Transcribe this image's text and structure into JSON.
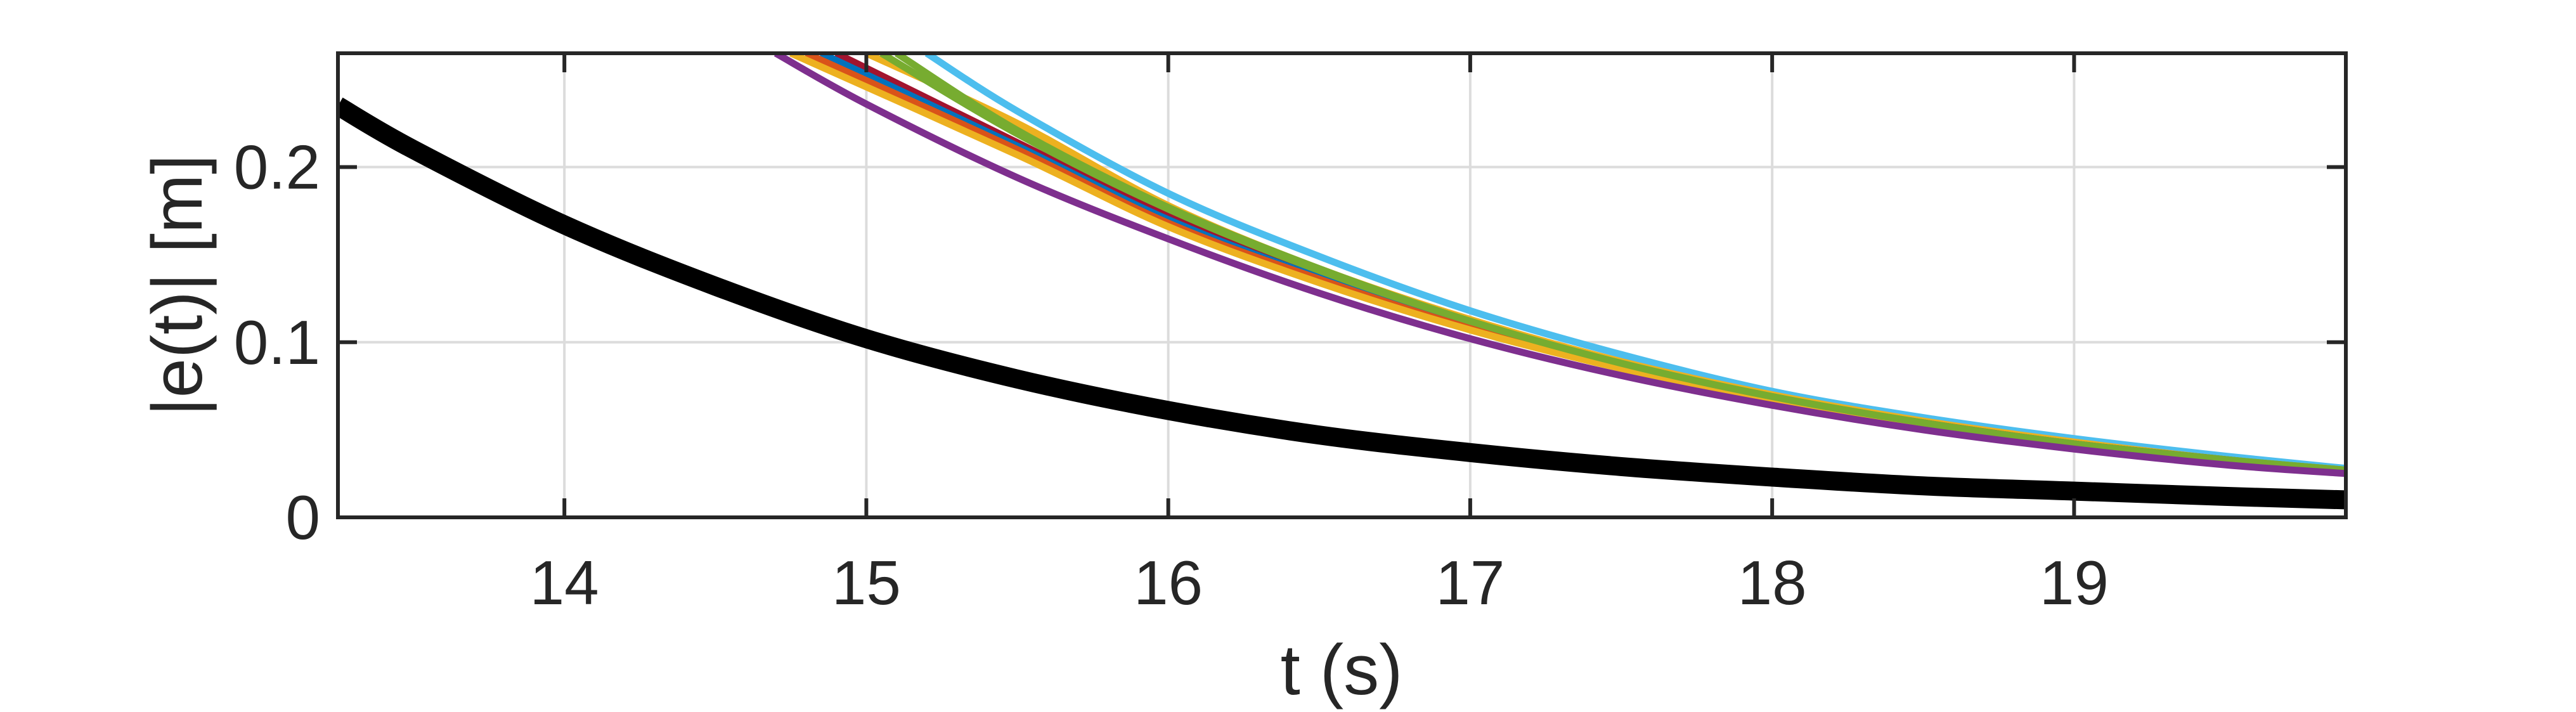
{
  "chart_data": {
    "type": "line",
    "title": "",
    "xlabel": "t (s)",
    "ylabel": "|e(t)| [m]",
    "xlim": [
      13.25,
      19.9
    ],
    "ylim": [
      0,
      0.265
    ],
    "xticks": [
      14,
      15,
      16,
      17,
      18,
      19
    ],
    "yticks": [
      0,
      0.1,
      0.2
    ],
    "xtick_labels": [
      "14",
      "15",
      "16",
      "17",
      "18",
      "19"
    ],
    "ytick_labels": [
      "0",
      "0.1",
      "0.2"
    ],
    "grid": true,
    "legend": "none",
    "series": [
      {
        "color": "#000000",
        "role": "reference",
        "x": [
          13.25,
          13.5,
          14.0,
          14.5,
          15.0,
          15.5,
          16.0,
          16.5,
          17.0,
          17.5,
          18.0,
          18.5,
          19.0,
          19.5,
          19.9
        ],
        "y": [
          0.235,
          0.21,
          0.167,
          0.132,
          0.102,
          0.079,
          0.061,
          0.047,
          0.037,
          0.029,
          0.023,
          0.018,
          0.015,
          0.012,
          0.01
        ]
      },
      {
        "color": "#4DBEEE",
        "x": [
          15.2,
          15.5,
          16.0,
          16.5,
          17.0,
          17.5,
          18.0,
          18.5,
          19.0,
          19.5,
          19.9
        ],
        "y": [
          0.265,
          0.232,
          0.185,
          0.149,
          0.118,
          0.093,
          0.072,
          0.057,
          0.045,
          0.035,
          0.028
        ]
      },
      {
        "color": "#EDB120",
        "x": [
          15.0,
          15.5,
          16.0,
          16.5,
          17.0,
          17.5,
          18.0,
          18.5,
          19.0,
          19.5,
          19.9
        ],
        "y": [
          0.265,
          0.225,
          0.178,
          0.142,
          0.113,
          0.089,
          0.07,
          0.055,
          0.043,
          0.033,
          0.027
        ]
      },
      {
        "color": "#A2142F",
        "x": [
          14.9,
          15.5,
          16.0,
          16.5,
          17.0,
          17.5,
          18.0,
          18.5,
          19.0,
          19.5,
          19.9
        ],
        "y": [
          0.265,
          0.214,
          0.172,
          0.138,
          0.11,
          0.087,
          0.068,
          0.054,
          0.042,
          0.033,
          0.026
        ]
      },
      {
        "color": "#0072BD",
        "x": [
          14.85,
          15.5,
          16.0,
          16.5,
          17.0,
          17.5,
          18.0,
          18.5,
          19.0,
          19.5,
          19.9
        ],
        "y": [
          0.265,
          0.212,
          0.17,
          0.137,
          0.109,
          0.086,
          0.068,
          0.053,
          0.041,
          0.032,
          0.026
        ]
      },
      {
        "color": "#D95319",
        "x": [
          14.8,
          15.5,
          16.0,
          16.5,
          17.0,
          17.5,
          18.0,
          18.5,
          19.0,
          19.5,
          19.9
        ],
        "y": [
          0.265,
          0.21,
          0.168,
          0.136,
          0.108,
          0.086,
          0.067,
          0.053,
          0.041,
          0.032,
          0.026
        ]
      },
      {
        "color": "#EDB120",
        "x": [
          14.75,
          15.5,
          16.0,
          16.5,
          17.0,
          17.5,
          18.0,
          18.5,
          19.0,
          19.5,
          19.9
        ],
        "y": [
          0.265,
          0.207,
          0.166,
          0.134,
          0.107,
          0.085,
          0.067,
          0.053,
          0.041,
          0.032,
          0.026
        ]
      },
      {
        "color": "#77AC30",
        "x": [
          15.05,
          15.5,
          16.0,
          16.5,
          17.0,
          17.5,
          18.0,
          18.5,
          19.0,
          19.5,
          19.9
        ],
        "y": [
          0.265,
          0.219,
          0.176,
          0.141,
          0.112,
          0.088,
          0.069,
          0.054,
          0.042,
          0.033,
          0.027
        ]
      },
      {
        "color": "#77AC30",
        "x": [
          15.1,
          15.5,
          16.0,
          16.5,
          17.0,
          17.5,
          18.0,
          18.5,
          19.0,
          19.5,
          19.9
        ],
        "y": [
          0.265,
          0.221,
          0.177,
          0.142,
          0.112,
          0.088,
          0.069,
          0.054,
          0.042,
          0.033,
          0.027
        ]
      },
      {
        "color": "#7E2F8E",
        "x": [
          14.7,
          15.0,
          15.5,
          16.0,
          16.5,
          17.0,
          17.5,
          18.0,
          18.5,
          19.0,
          19.5,
          19.9
        ],
        "y": [
          0.265,
          0.236,
          0.194,
          0.159,
          0.128,
          0.102,
          0.081,
          0.064,
          0.05,
          0.039,
          0.03,
          0.025
        ]
      }
    ]
  }
}
